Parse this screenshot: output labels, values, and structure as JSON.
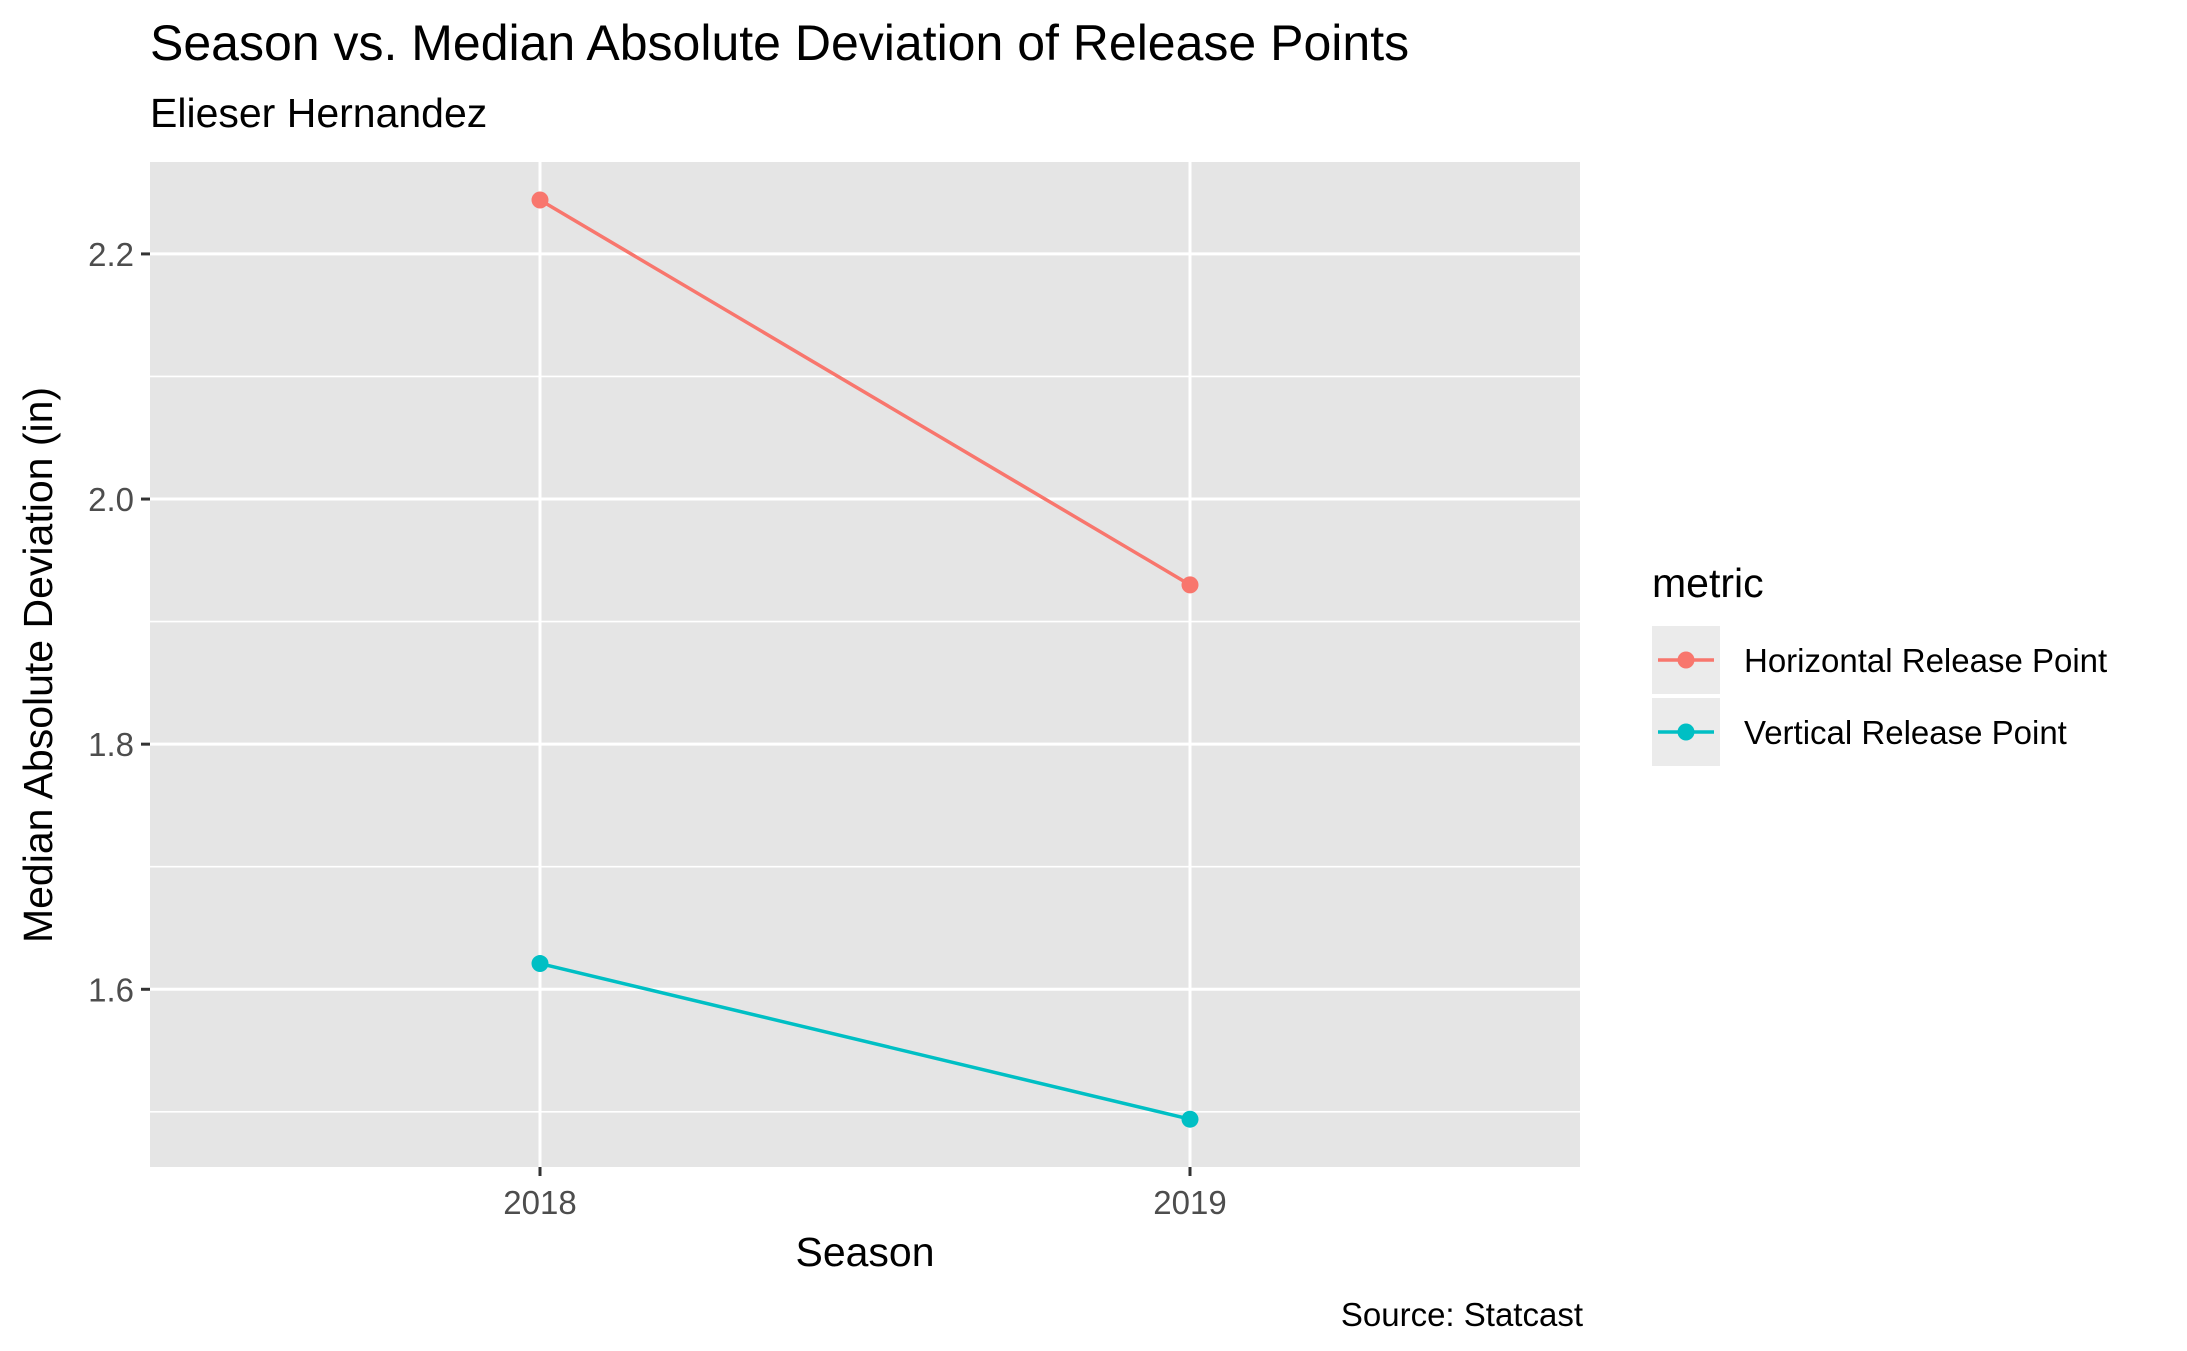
{
  "chart_data": {
    "type": "line",
    "title": "Season vs. Median Absolute Deviation of Release Points",
    "subtitle": "Elieser Hernandez",
    "caption": "Source: Statcast",
    "xlabel": "Season",
    "ylabel": "Median Absolute Deviation (in)",
    "categories": [
      "2018",
      "2019"
    ],
    "ylim": [
      1.455,
      2.275
    ],
    "yticks": [
      1.6,
      1.8,
      2.0,
      2.2
    ],
    "ytick_labels": [
      "1.6",
      "1.8",
      "2.0",
      "2.2"
    ],
    "grid": true,
    "legend": {
      "title": "metric",
      "position": "right"
    },
    "series": [
      {
        "name": "Horizontal Release Point",
        "color": "#F8766D",
        "values": [
          2.244,
          1.93
        ]
      },
      {
        "name": "Vertical Release Point",
        "color": "#00BFC4",
        "values": [
          1.621,
          1.494
        ]
      }
    ]
  }
}
